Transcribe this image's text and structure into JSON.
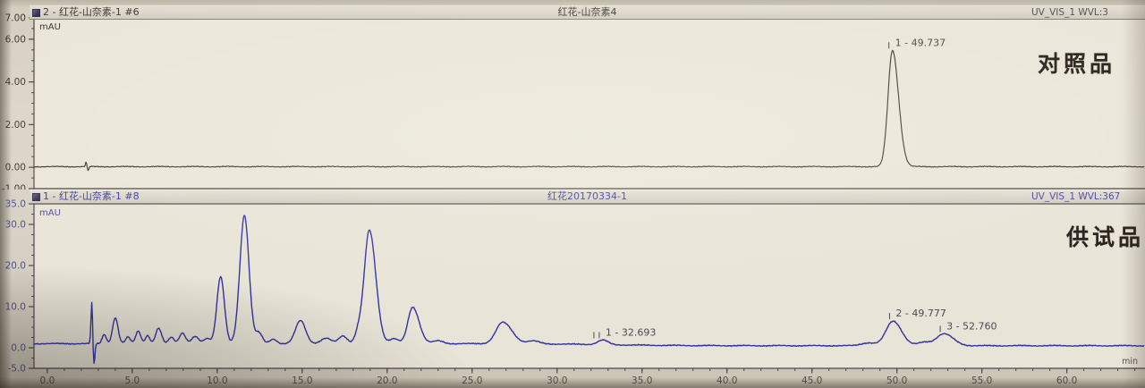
{
  "chart_data": [
    {
      "type": "line",
      "panel": "reference",
      "trace_label": "2 - 红花-山奈素-1 #6",
      "title": "红花-山奈素4",
      "detector_label": "UV_VIS_1 WVL:3",
      "annotation": "对照品",
      "y_unit": "mAU",
      "x_range": [
        -0.785,
        64.6
      ],
      "y_range": [
        -1.0,
        7.0
      ],
      "y_ticks": [
        {
          "v": 7.0,
          "label": "7.00"
        },
        {
          "v": 6.0,
          "label": "6.00"
        },
        {
          "v": 4.0,
          "label": "4.00"
        },
        {
          "v": 2.0,
          "label": "2.00"
        },
        {
          "v": 0.0,
          "label": "0.00"
        },
        {
          "v": -1.0,
          "label": "-1.00"
        }
      ],
      "y_minor_step": 0.5,
      "baseline": 0.03,
      "baseline_drop": 0,
      "noise": 0.022,
      "trace_color": "#3a362e",
      "plot_bg": "#eae6d9",
      "frame_color": "#4b463c",
      "y_label_color": "#3d3931",
      "peak_label_color": "#4b463e",
      "peaks": [
        {
          "rt": 2.28,
          "h": 0.22,
          "w": 0.035
        },
        {
          "rt": 2.4,
          "h": -0.2,
          "w": 0.04
        },
        {
          "id": "1",
          "rt": 49.737,
          "h": 5.45,
          "w": 0.26,
          "wr": 0.36,
          "label": "1 - 49.737"
        }
      ]
    },
    {
      "type": "line",
      "panel": "sample",
      "trace_label": "1 - 红花-山奈素-1 #8",
      "title": "红花20170334-1",
      "detector_label": "UV_VIS_1 WVL:367",
      "annotation": "供试品",
      "y_unit": "mAU",
      "x_unit": "min",
      "x_range": [
        -0.785,
        64.6
      ],
      "y_range": [
        -5.0,
        35.0
      ],
      "y_ticks": [
        {
          "v": 35.0,
          "label": "35.0"
        },
        {
          "v": 30.0,
          "label": "30.0"
        },
        {
          "v": 20.0,
          "label": "20.0"
        },
        {
          "v": 10.0,
          "label": "10.0"
        },
        {
          "v": 0.0,
          "label": "0.0"
        },
        {
          "v": -5.0,
          "label": "-5.0"
        }
      ],
      "y_minor_step": 2.5,
      "x_ticks": [
        {
          "v": 0,
          "label": "0.0"
        },
        {
          "v": 5,
          "label": "5.0"
        },
        {
          "v": 10,
          "label": "10.0"
        },
        {
          "v": 15,
          "label": "15.0"
        },
        {
          "v": 20,
          "label": "20.0"
        },
        {
          "v": 25,
          "label": "25.0"
        },
        {
          "v": 30,
          "label": "30.0"
        },
        {
          "v": 35,
          "label": "35.0"
        },
        {
          "v": 40,
          "label": "40.0"
        },
        {
          "v": 45,
          "label": "45.0"
        },
        {
          "v": 50,
          "label": "50.0"
        },
        {
          "v": 55,
          "label": "55.0"
        },
        {
          "v": 60,
          "label": "60.0"
        }
      ],
      "x_minor_step": 1,
      "baseline": 1.0,
      "baseline_drop": 0.5,
      "noise": 0.13,
      "trace_color": "#3431a0",
      "plot_bg": "#e8e4d7",
      "frame_color": "#4b4650",
      "y_label_color": "#4d4da0",
      "x_label_color": "#56514a",
      "peak_label_color": "#4a4a58",
      "peaks": [
        {
          "rt": 2.62,
          "h": 10.3,
          "w": 0.05
        },
        {
          "rt": 2.74,
          "h": -5.3,
          "w": 0.055
        },
        {
          "rt": 3.35,
          "h": 2.3,
          "w": 0.12
        },
        {
          "rt": 4.0,
          "h": 6.3,
          "w": 0.16
        },
        {
          "rt": 4.75,
          "h": 1.6,
          "w": 0.14
        },
        {
          "rt": 5.35,
          "h": 3.1,
          "w": 0.15
        },
        {
          "rt": 5.9,
          "h": 2.0,
          "w": 0.13
        },
        {
          "rt": 6.55,
          "h": 3.7,
          "w": 0.17
        },
        {
          "rt": 7.3,
          "h": 1.6,
          "w": 0.16
        },
        {
          "rt": 7.95,
          "h": 2.6,
          "w": 0.18
        },
        {
          "rt": 8.7,
          "h": 1.7,
          "w": 0.2
        },
        {
          "rt": 9.4,
          "h": 1.3,
          "w": 0.2
        },
        {
          "rt": 10.2,
          "h": 16.3,
          "w": 0.22
        },
        {
          "rt": 11.6,
          "h": 31.3,
          "w": 0.27
        },
        {
          "rt": 12.45,
          "h": 2.6,
          "w": 0.2
        },
        {
          "rt": 13.3,
          "h": 1.1,
          "w": 0.2
        },
        {
          "rt": 14.9,
          "h": 5.6,
          "w": 0.3
        },
        {
          "rt": 16.4,
          "h": 1.3,
          "w": 0.3
        },
        {
          "rt": 17.4,
          "h": 1.9,
          "w": 0.25
        },
        {
          "rt": 18.3,
          "h": 2.6,
          "w": 0.2
        },
        {
          "rt": 18.95,
          "h": 27.6,
          "w": 0.3,
          "wr": 0.38
        },
        {
          "rt": 20.4,
          "h": 1.2,
          "w": 0.25
        },
        {
          "rt": 21.5,
          "h": 8.9,
          "w": 0.28,
          "wr": 0.38
        },
        {
          "rt": 23.0,
          "h": 0.7,
          "w": 0.3
        },
        {
          "rt": 26.8,
          "h": 5.2,
          "w": 0.4,
          "wr": 0.55
        },
        {
          "rt": 28.6,
          "h": 0.7,
          "w": 0.35
        },
        {
          "id": "1",
          "rt": 32.693,
          "h": 1.1,
          "w": 0.3,
          "label": "1 - 32.693",
          "ticks": 2
        },
        {
          "rt": 48.3,
          "h": 0.7,
          "w": 0.4
        },
        {
          "id": "2",
          "rt": 49.777,
          "h": 6.0,
          "w": 0.42,
          "wr": 0.5,
          "label": "2 - 49.777"
        },
        {
          "rt": 51.6,
          "h": 0.8,
          "w": 0.35
        },
        {
          "id": "3",
          "rt": 52.76,
          "h": 2.9,
          "w": 0.45,
          "wr": 0.55,
          "label": "3 - 52.760"
        }
      ]
    }
  ]
}
